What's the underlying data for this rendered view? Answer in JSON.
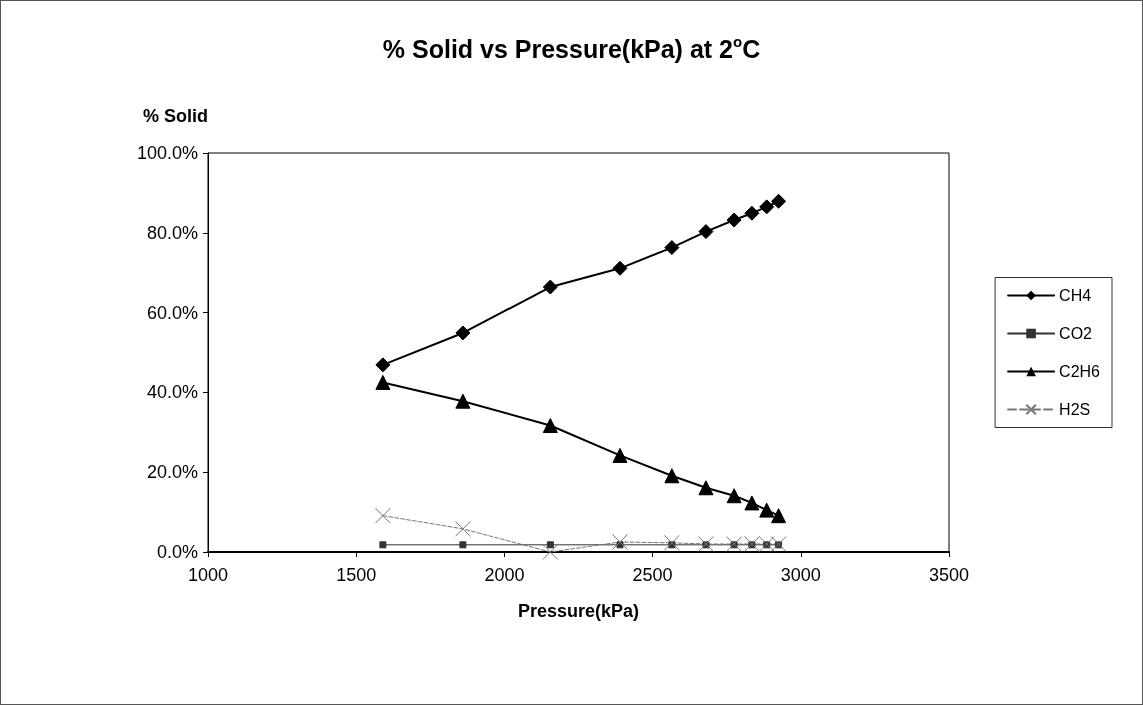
{
  "chart_data": {
    "type": "line",
    "title": "% Solid vs Pressure(kPa) at 2$^{o}$C",
    "xlabel": "Pressure(kPa)",
    "ylabel": "% Solid",
    "x": [
      1590,
      1860,
      2155,
      2390,
      2565,
      2680,
      2775,
      2835,
      2885,
      2925
    ],
    "series": [
      {
        "name": "CH4",
        "color": "#000000",
        "marker": "diamond",
        "line_style": "solid",
        "values": [
          46.9,
          54.9,
          66.4,
          71.1,
          76.3,
          80.3,
          83.2,
          84.9,
          86.5,
          87.9
        ]
      },
      {
        "name": "CO2",
        "color": "#333333",
        "marker": "square",
        "line_style": "solid",
        "values": [
          1.8,
          1.8,
          1.8,
          1.8,
          1.8,
          1.8,
          1.8,
          1.8,
          1.8,
          1.8
        ]
      },
      {
        "name": "C2H6",
        "color": "#000000",
        "marker": "triangle",
        "line_style": "solid",
        "values": [
          42.5,
          37.8,
          31.7,
          24.2,
          19.1,
          16.1,
          14.1,
          12.3,
          10.5,
          9.1
        ]
      },
      {
        "name": "H2S",
        "color": "#777777",
        "marker": "cross",
        "line_style": "dashed",
        "values": [
          9.1,
          5.8,
          0,
          2.5,
          2.3,
          2.0,
          2.0,
          2.0,
          2.0,
          2.0
        ]
      }
    ],
    "xlim": [
      1000,
      3500
    ],
    "xticks": [
      1000,
      1500,
      2000,
      2500,
      3000,
      3500
    ],
    "ylim": [
      0,
      100
    ],
    "yticks": [
      {
        "value": 0,
        "label": "0.0%"
      },
      {
        "value": 20,
        "label": "20.0%"
      },
      {
        "value": 40,
        "label": "40.0%"
      },
      {
        "value": 60,
        "label": "60.0%"
      },
      {
        "value": 80,
        "label": "80.0%"
      },
      {
        "value": 100,
        "label": "100.0%"
      }
    ],
    "grid": false,
    "legend": "right"
  }
}
